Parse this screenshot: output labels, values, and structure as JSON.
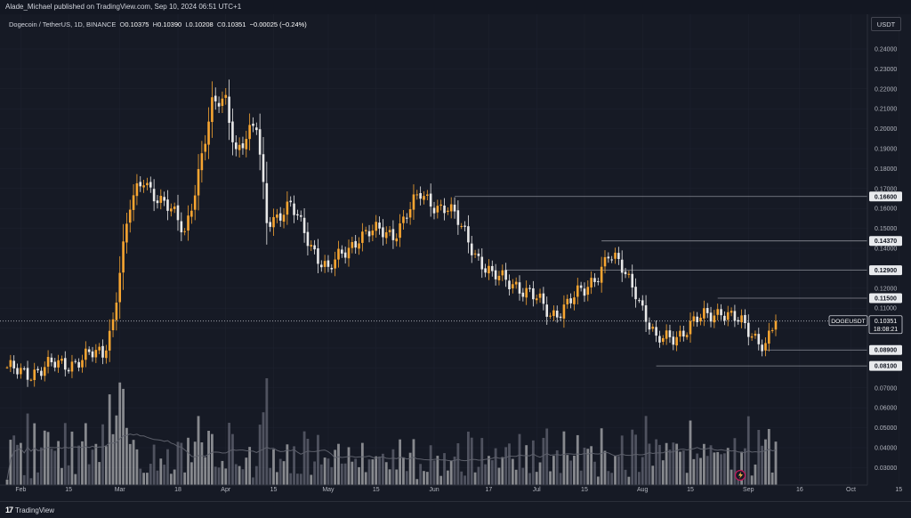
{
  "header": {
    "published": "Alade_Michael published on TradingView.com, Sep 10, 2024 06:51 UTC+1"
  },
  "legend": {
    "symbol": "Dogecoin / TetherUS, 1D, BINANCE",
    "o_label": "O",
    "o": "0.10375",
    "h_label": "H",
    "h": "0.10390",
    "l_label": "L",
    "l": "0.10208",
    "c_label": "C",
    "c": "0.10351",
    "change": "−0.00025 (−0.24%)"
  },
  "currency_button": "USDT",
  "colors": {
    "background": "#161a25",
    "up": "#f7a531",
    "down": "#e8e8e8",
    "grid": "#1f2330",
    "level_line": "#8a8d96"
  },
  "y_axis": {
    "ticks": [
      "0.24000",
      "0.23000",
      "0.22000",
      "0.21000",
      "0.20000",
      "0.19000",
      "0.18000",
      "0.17000",
      "0.16000",
      "0.15000",
      "0.14000",
      "0.13000",
      "0.12000",
      "0.11000",
      "0.10000",
      "0.09000",
      "0.08000",
      "0.07000",
      "0.06000",
      "0.05000",
      "0.04000",
      "0.03000"
    ]
  },
  "x_axis": {
    "ticks": [
      "Feb",
      "15",
      "Mar",
      "18",
      "Apr",
      "15",
      "May",
      "15",
      "Jun",
      "17",
      "Jul",
      "15",
      "Aug",
      "15",
      "Sep",
      "16",
      "Oct",
      "15"
    ]
  },
  "levels": [
    {
      "label": "0.16600",
      "value": 0.166
    },
    {
      "label": "0.14370",
      "value": 0.1437
    },
    {
      "label": "0.12900",
      "value": 0.129
    },
    {
      "label": "0.11500",
      "value": 0.115
    },
    {
      "label": "0.08900",
      "value": 0.089
    },
    {
      "label": "0.08100",
      "value": 0.081
    }
  ],
  "price_tag": {
    "symbol": "DOGEUSDT",
    "price": "0.10351",
    "countdown": "18:08:21"
  },
  "footer": {
    "brand": "TradingView",
    "logo_text": "17"
  },
  "chart_data": {
    "type": "candlestick",
    "title": "Dogecoin / TetherUS, 1D, BINANCE",
    "y_scale": "linear",
    "ylim": [
      0.025,
      0.24
    ],
    "x_range": [
      "2024-01-28",
      "2024-10-20"
    ],
    "current_price": 0.10351,
    "volume_pane": true,
    "volume_sma": true,
    "grid": true,
    "key_levels": [
      0.166,
      0.1437,
      0.129,
      0.115,
      0.089,
      0.081
    ],
    "approx_closes_by_date": [
      [
        "2024-01-28",
        0.078
      ],
      [
        "2024-02-07",
        0.079
      ],
      [
        "2024-02-15",
        0.083
      ],
      [
        "2024-02-25",
        0.087
      ],
      [
        "2024-02-28",
        0.105
      ],
      [
        "2024-03-01",
        0.13
      ],
      [
        "2024-03-04",
        0.16
      ],
      [
        "2024-03-08",
        0.175
      ],
      [
        "2024-03-15",
        0.16
      ],
      [
        "2024-03-20",
        0.148
      ],
      [
        "2024-03-28",
        0.21
      ],
      [
        "2024-04-01",
        0.215
      ],
      [
        "2024-04-04",
        0.19
      ],
      [
        "2024-04-10",
        0.2
      ],
      [
        "2024-04-13",
        0.155
      ],
      [
        "2024-04-20",
        0.16
      ],
      [
        "2024-05-01",
        0.128
      ],
      [
        "2024-05-10",
        0.147
      ],
      [
        "2024-05-20",
        0.148
      ],
      [
        "2024-05-28",
        0.166
      ],
      [
        "2024-06-05",
        0.16
      ],
      [
        "2024-06-10",
        0.147
      ],
      [
        "2024-06-18",
        0.125
      ],
      [
        "2024-06-25",
        0.123
      ],
      [
        "2024-07-05",
        0.107
      ],
      [
        "2024-07-15",
        0.118
      ],
      [
        "2024-07-22",
        0.137
      ],
      [
        "2024-07-30",
        0.12
      ],
      [
        "2024-08-05",
        0.092
      ],
      [
        "2024-08-15",
        0.101
      ],
      [
        "2024-08-24",
        0.11
      ],
      [
        "2024-09-01",
        0.098
      ],
      [
        "2024-09-06",
        0.093
      ],
      [
        "2024-09-09",
        0.1035
      ]
    ]
  }
}
